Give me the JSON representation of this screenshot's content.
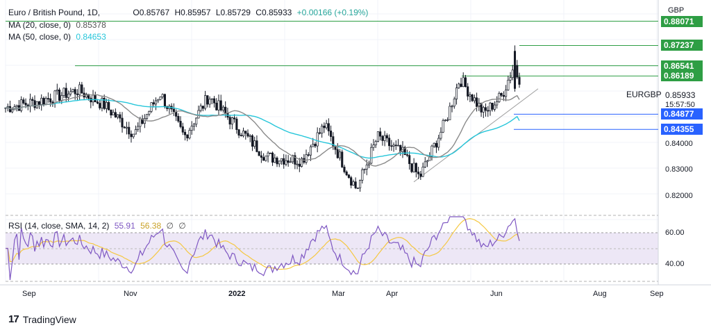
{
  "header": {
    "symbol_title": "Euro / British Pound, 1D,",
    "ohlc": {
      "open": "O0.85767",
      "high": "H0.85957",
      "low": "L0.85729",
      "close": "C0.85933",
      "change": "+0.00166 (+0.19%)"
    },
    "ma20_label": "MA (20, close, 0)",
    "ma20_value": "0.85378",
    "ma50_label": "MA (50, close, 0)",
    "ma50_value": "0.84653",
    "rsi_label": "RSI (14, close, SMA, 14, 2)",
    "rsi_value": "55.91",
    "rsi_ma_value": "56.38",
    "rsi_extra1": "∅",
    "rsi_extra2": "∅"
  },
  "axis": {
    "currency": "GBP",
    "symbol_label": "EURGBP",
    "last_price": "0.85933",
    "countdown": "15:57:50",
    "price_ticks": [
      "0.84000",
      "0.83000",
      "0.82000"
    ],
    "rsi_ticks": [
      "60.00",
      "40.00"
    ],
    "time_labels": [
      "Sep",
      "Nov",
      "2022",
      "Mar",
      "Apr",
      "Jun",
      "Aug",
      "Sep"
    ]
  },
  "levels": [
    {
      "value": "0.88071",
      "color": "#2e9e44",
      "style": "solid"
    },
    {
      "value": "0.87237",
      "color": "#2e9e44",
      "style": "solid"
    },
    {
      "value": "0.86541",
      "color": "#2e9e44",
      "style": "solid"
    },
    {
      "value": "0.86189",
      "color": "#2e9e44",
      "style": "solid"
    },
    {
      "value": "0.84877",
      "color": "#2962ff",
      "style": "solid"
    },
    {
      "value": "0.84355",
      "color": "#2962ff",
      "style": "solid"
    }
  ],
  "colors": {
    "candle": "#131722",
    "ma20": "#8a8a8a",
    "ma50": "#26c6da",
    "rsi": "#7e57c2",
    "rsi_ma": "#f5c842",
    "rsi_band": "#ede7f6",
    "support": "#2e9e44",
    "resistance": "#2962ff"
  },
  "footer": {
    "brand": "TradingView"
  },
  "chart_data": {
    "type": "line",
    "title": "Euro / British Pound, 1D",
    "price_range": [
      0.814,
      0.888
    ],
    "rsi_range": [
      25,
      75
    ],
    "anchor_points": [
      {
        "t": "2021-08-01",
        "close": 0.851
      },
      {
        "t": "2021-08-20",
        "close": 0.853
      },
      {
        "t": "2021-09-15",
        "close": 0.857
      },
      {
        "t": "2021-10-01",
        "close": 0.852
      },
      {
        "t": "2021-10-20",
        "close": 0.842
      },
      {
        "t": "2021-11-05",
        "close": 0.856
      },
      {
        "t": "2021-11-20",
        "close": 0.841
      },
      {
        "t": "2021-12-05",
        "close": 0.855
      },
      {
        "t": "2021-12-25",
        "close": 0.843
      },
      {
        "t": "2022-01-10",
        "close": 0.834
      },
      {
        "t": "2022-02-01",
        "close": 0.833
      },
      {
        "t": "2022-02-15",
        "close": 0.845
      },
      {
        "t": "2022-03-01",
        "close": 0.829
      },
      {
        "t": "2022-03-07",
        "close": 0.823
      },
      {
        "t": "2022-03-20",
        "close": 0.841
      },
      {
        "t": "2022-04-05",
        "close": 0.835
      },
      {
        "t": "2022-04-15",
        "close": 0.827
      },
      {
        "t": "2022-05-01",
        "close": 0.846
      },
      {
        "t": "2022-05-10",
        "close": 0.861
      },
      {
        "t": "2022-05-25",
        "close": 0.849
      },
      {
        "t": "2022-06-05",
        "close": 0.855
      },
      {
        "t": "2022-06-13",
        "close": 0.866
      },
      {
        "t": "2022-06-16",
        "close": 0.859
      }
    ],
    "ma20_last": 0.85378,
    "ma50_last": 0.84653,
    "rsi_last": 55.91,
    "rsi_ma_last": 56.38
  }
}
